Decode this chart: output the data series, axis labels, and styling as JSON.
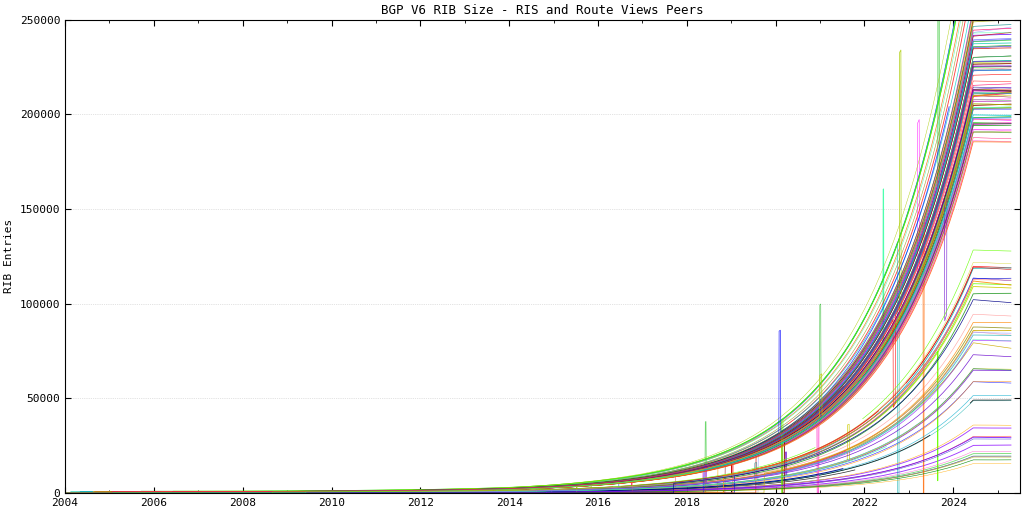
{
  "title": "BGP V6 RIB Size - RIS and Route Views Peers",
  "ylabel": "RIB Entries",
  "xlim": [
    2004,
    2025.5
  ],
  "ylim": [
    0,
    250000
  ],
  "yticks": [
    0,
    50000,
    100000,
    150000,
    200000,
    250000
  ],
  "xticks": [
    2004,
    2006,
    2008,
    2010,
    2012,
    2014,
    2016,
    2018,
    2020,
    2022,
    2024
  ],
  "background_color": "#ffffff",
  "grid_color": "#b0b0b0",
  "title_fontsize": 9,
  "label_fontsize": 8,
  "tick_fontsize": 8,
  "num_lines": 150,
  "seed": 7,
  "year_start": 2004.0,
  "year_end": 2025.3,
  "colors": [
    "#0000ff",
    "#ff0000",
    "#00aa00",
    "#ff8800",
    "#aa00aa",
    "#00aaaa",
    "#888800",
    "#000000",
    "#ff00ff",
    "#00cccc",
    "#ff4444",
    "#4444ff",
    "#44cc44",
    "#ffaa00",
    "#8800ff",
    "#ff44cc",
    "#44ffaa",
    "#cccc00",
    "#ff8888",
    "#8888ff",
    "#008800",
    "#880000",
    "#000088",
    "#aaaa00",
    "#008888",
    "#ff6600",
    "#6600ff",
    "#00ff88",
    "#ff0066",
    "#66ff00",
    "#cc0000",
    "#0000cc",
    "#00cc00",
    "#cc6600",
    "#6600cc",
    "#00ccaa",
    "#ccaa00",
    "#cc00aa",
    "#00aacc",
    "#aacc00"
  ]
}
